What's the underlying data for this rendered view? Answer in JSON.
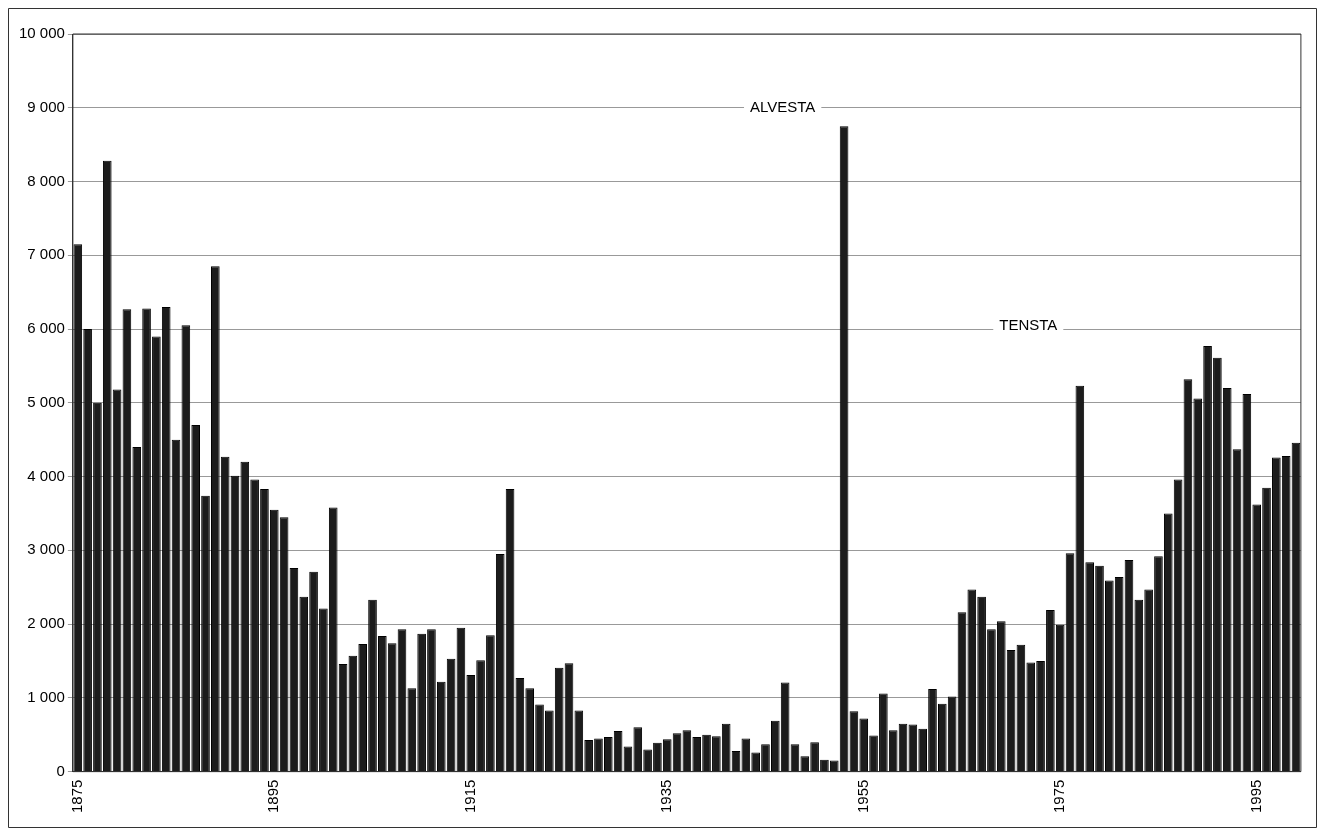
{
  "chart_data": {
    "type": "bar",
    "categories": [
      "1875",
      null,
      null,
      null,
      null,
      null,
      null,
      null,
      null,
      null,
      null,
      null,
      null,
      null,
      null,
      null,
      null,
      null,
      null,
      null,
      "1895",
      null,
      null,
      null,
      null,
      null,
      null,
      null,
      null,
      null,
      null,
      null,
      null,
      null,
      null,
      null,
      null,
      null,
      null,
      null,
      "1915",
      null,
      null,
      null,
      null,
      null,
      null,
      null,
      null,
      null,
      null,
      null,
      null,
      null,
      null,
      null,
      null,
      null,
      null,
      null,
      "1935",
      null,
      null,
      null,
      null,
      null,
      null,
      null,
      null,
      null,
      null,
      null,
      null,
      null,
      null,
      null,
      null,
      null,
      null,
      null,
      "1955",
      null,
      null,
      null,
      null,
      null,
      null,
      null,
      null,
      null,
      null,
      null,
      null,
      null,
      null,
      null,
      null,
      null,
      null,
      null,
      "1975",
      null,
      null,
      null,
      null,
      null,
      null,
      null,
      null,
      null,
      null,
      null,
      null,
      null,
      null,
      null,
      null,
      null,
      null,
      null,
      "1995",
      null,
      null,
      null,
      null
    ],
    "values": [
      7150,
      6000,
      5000,
      8280,
      5180,
      6270,
      4400,
      6280,
      5900,
      6300,
      4500,
      6050,
      4700,
      3740,
      6850,
      4270,
      4010,
      4200,
      3960,
      3830,
      3550,
      3450,
      2760,
      2370,
      2710,
      2210,
      3580,
      1460,
      1570,
      1730,
      2330,
      1840,
      1740,
      1930,
      1130,
      1870,
      1930,
      1220,
      1530,
      1950,
      1310,
      1510,
      1850,
      2950,
      3830,
      1270,
      1130,
      910,
      830,
      1410,
      1470,
      830,
      430,
      450,
      470,
      550,
      340,
      600,
      300,
      390,
      440,
      520,
      560,
      470,
      500,
      480,
      650,
      280,
      450,
      260,
      370,
      690,
      1210,
      370,
      210,
      400,
      160,
      150,
      8750,
      820,
      720,
      490,
      1060,
      560,
      650,
      640,
      580,
      1120,
      920,
      1020,
      2160,
      2470,
      2370,
      1930,
      2040,
      1650,
      1720,
      1480,
      1500,
      2190,
      1990,
      2960,
      5230,
      2840,
      2790,
      2590,
      2640,
      2870,
      2330,
      2470,
      2920,
      3500,
      3960,
      5320,
      5060,
      5770,
      5610,
      5200,
      4370,
      5120,
      3620,
      3850,
      4260,
      4280,
      4460
    ],
    "color": "#1c1c1c",
    "ylim": [
      0,
      10000
    ],
    "yticks": [
      0,
      {
        "value": 1000,
        "label": "1 000"
      },
      {
        "value": 2000,
        "label": "2 000"
      },
      {
        "value": 3000,
        "label": "3 000"
      },
      {
        "value": 4000,
        "label": "4 000"
      },
      {
        "value": 5000,
        "label": "5 000"
      },
      {
        "value": 6000,
        "label": "6 000"
      },
      {
        "value": 7000,
        "label": "7 000"
      },
      {
        "value": 8000,
        "label": "8 000"
      },
      {
        "value": 9000,
        "label": "9 000"
      },
      {
        "value": 10000,
        "label": "10 000"
      }
    ],
    "grid": "y",
    "legend": false,
    "annotations": [
      "ALVESTA",
      "TENSTA"
    ]
  }
}
